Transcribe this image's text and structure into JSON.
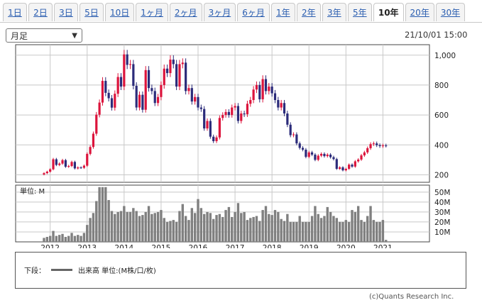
{
  "tabs": [
    {
      "label": "1日",
      "active": false
    },
    {
      "label": "2日",
      "active": false
    },
    {
      "label": "3日",
      "active": false
    },
    {
      "label": "5日",
      "active": false
    },
    {
      "label": "10日",
      "active": false
    },
    {
      "label": "1ヶ月",
      "active": false
    },
    {
      "label": "2ヶ月",
      "active": false
    },
    {
      "label": "3ヶ月",
      "active": false
    },
    {
      "label": "6ヶ月",
      "active": false
    },
    {
      "label": "1年",
      "active": false
    },
    {
      "label": "2年",
      "active": false
    },
    {
      "label": "3年",
      "active": false
    },
    {
      "label": "5年",
      "active": false
    },
    {
      "label": "10年",
      "active": true
    },
    {
      "label": "20年",
      "active": false
    },
    {
      "label": "30年",
      "active": false
    }
  ],
  "period_select": {
    "value": "月足"
  },
  "datetime": "21/10/01 15:00",
  "legend": {
    "prefix": "下段：",
    "text": "出来高 単位:(M株/口/枚)"
  },
  "copyright": "(c)Quants Research Inc.",
  "colors": {
    "up": "#dc143c",
    "down": "#2b2b7a",
    "volume": "#808080",
    "grid": "#c8c8c8"
  },
  "chart_data": [
    {
      "type": "candlestick",
      "xlabels": [
        "2012",
        "2013",
        "2014",
        "2015",
        "2016",
        "2017",
        "2018",
        "2019",
        "2020",
        "2021"
      ],
      "ylim": [
        150,
        1070
      ],
      "yticks": [
        200,
        400,
        600,
        800,
        "1,000"
      ],
      "close": [
        211,
        221,
        237,
        304,
        266,
        275,
        298,
        254,
        259,
        286,
        243,
        249,
        247,
        261,
        340,
        386,
        475,
        602,
        683,
        828,
        748,
        712,
        649,
        742,
        854,
        790,
        1005,
        935,
        940,
        795,
        650,
        735,
        635,
        900,
        780,
        760,
        680,
        720,
        800,
        910,
        880,
        970,
        940,
        790,
        940,
        950,
        760,
        780,
        690,
        720,
        650,
        640,
        510,
        560,
        455,
        425,
        450,
        580,
        600,
        620,
        600,
        650,
        660,
        560,
        610,
        605,
        675,
        700,
        770,
        800,
        705,
        840,
        760,
        790,
        745,
        700,
        650,
        680,
        610,
        535,
        465,
        470,
        410,
        380,
        368,
        320,
        350,
        335,
        300,
        328,
        340,
        325,
        335,
        318,
        305,
        240,
        250,
        230,
        240,
        268,
        255,
        290,
        302,
        330,
        350,
        378,
        405,
        410,
        398,
        392,
        396,
        395
      ],
      "volume": [
        4,
        5,
        6,
        11,
        6,
        7,
        8,
        5,
        6,
        9,
        6,
        7,
        6,
        9,
        17,
        24,
        29,
        41,
        55,
        55,
        55,
        42,
        31,
        28,
        30,
        31,
        36,
        30,
        30,
        34,
        31,
        26,
        27,
        30,
        36,
        28,
        29,
        30,
        32,
        24,
        20,
        21,
        22,
        20,
        31,
        38,
        26,
        22,
        34,
        29,
        43,
        34,
        28,
        30,
        29,
        23,
        27,
        28,
        25,
        32,
        35,
        25,
        30,
        39,
        29,
        30,
        22,
        24,
        25,
        26,
        21,
        32,
        36,
        28,
        27,
        32,
        30,
        23,
        21,
        28,
        20,
        20,
        20,
        26,
        20,
        20,
        20,
        26,
        36,
        28,
        24,
        26,
        35,
        30,
        26,
        24,
        20,
        20,
        22,
        20,
        32,
        30,
        36,
        22,
        20,
        26,
        36,
        22,
        20,
        20,
        22,
        2
      ],
      "vol_ylim": [
        0,
        57
      ],
      "vol_yticks": [
        "10M",
        "20M",
        "30M",
        "40M",
        "50M"
      ],
      "vol_unit_label": "単位: M"
    }
  ]
}
